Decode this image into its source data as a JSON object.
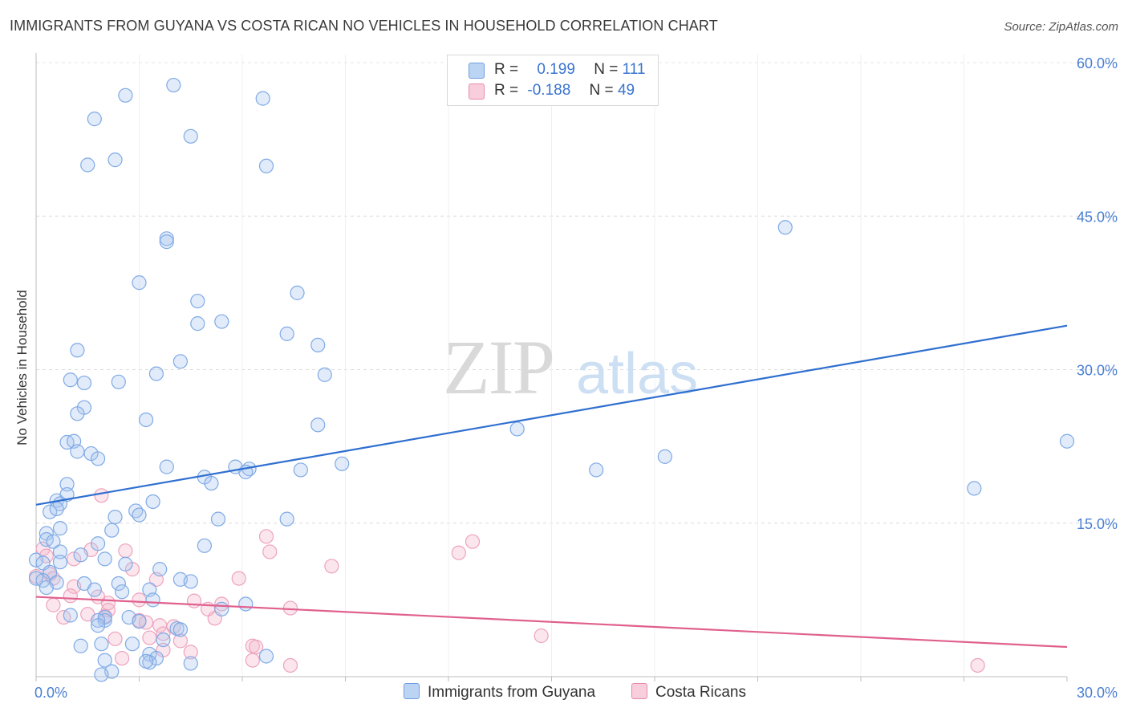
{
  "header": {
    "title": "IMMIGRANTS FROM GUYANA VS COSTA RICAN NO VEHICLES IN HOUSEHOLD CORRELATION CHART",
    "source": "Source: ZipAtlas.com"
  },
  "watermark": {
    "part1": "ZIP",
    "part2": "atlas"
  },
  "legend": {
    "rows": [
      {
        "r_label": "R =",
        "r_value": "0.199",
        "n_label": "N =",
        "n_value": "111"
      },
      {
        "r_label": "R =",
        "r_value": "-0.188",
        "n_label": "N =",
        "n_value": "49"
      }
    ]
  },
  "chart_data": {
    "type": "scatter",
    "title": "IMMIGRANTS FROM GUYANA VS COSTA RICAN NO VEHICLES IN HOUSEHOLD CORRELATION CHART",
    "xlabel": "",
    "ylabel": "No Vehicles in Household",
    "xlim": [
      0,
      30
    ],
    "ylim": [
      0,
      60
    ],
    "x_tick_labels": [
      "0.0%",
      "30.0%"
    ],
    "y_tick_labels": [
      "15.0%",
      "30.0%",
      "45.0%",
      "60.0%"
    ],
    "y_ticks": [
      15,
      30,
      45,
      60
    ],
    "grid": true,
    "legend_position": "top-center",
    "colors": {
      "guyana": "#a9c6ee",
      "guyana_line": "#2f6fd0",
      "costa": "#f4b8cc",
      "costa_line": "#e0608e"
    },
    "series": [
      {
        "name": "Immigrants from Guyana",
        "trend": {
          "x": [
            0,
            30
          ],
          "y": [
            16.8,
            34.3
          ]
        },
        "points": [
          [
            2.6,
            56.8
          ],
          [
            4.0,
            57.8
          ],
          [
            1.7,
            54.5
          ],
          [
            6.6,
            56.5
          ],
          [
            4.5,
            52.8
          ],
          [
            1.5,
            50
          ],
          [
            2.3,
            50.5
          ],
          [
            6.7,
            49.9
          ],
          [
            21.8,
            43.9
          ],
          [
            3.8,
            42.8
          ],
          [
            3.8,
            42.5
          ],
          [
            3.0,
            38.5
          ],
          [
            7.6,
            37.5
          ],
          [
            4.7,
            36.7
          ],
          [
            4.7,
            34.5
          ],
          [
            5.4,
            34.7
          ],
          [
            7.3,
            33.5
          ],
          [
            8.2,
            32.4
          ],
          [
            1.2,
            31.9
          ],
          [
            4.2,
            30.8
          ],
          [
            3.5,
            29.6
          ],
          [
            8.4,
            29.5
          ],
          [
            1.0,
            29.0
          ],
          [
            1.4,
            28.7
          ],
          [
            2.4,
            28.8
          ],
          [
            1.4,
            26.3
          ],
          [
            1.2,
            25.7
          ],
          [
            3.2,
            25.1
          ],
          [
            8.2,
            24.6
          ],
          [
            14.0,
            24.2
          ],
          [
            30.0,
            23.0
          ],
          [
            0.9,
            22.9
          ],
          [
            1.1,
            23.0
          ],
          [
            1.2,
            22.0
          ],
          [
            1.6,
            21.8
          ],
          [
            1.8,
            21.3
          ],
          [
            18.3,
            21.5
          ],
          [
            3.8,
            20.5
          ],
          [
            5.8,
            20.5
          ],
          [
            6.2,
            20.3
          ],
          [
            6.1,
            20.0
          ],
          [
            7.7,
            20.2
          ],
          [
            8.9,
            20.8
          ],
          [
            16.3,
            20.2
          ],
          [
            4.9,
            19.5
          ],
          [
            5.1,
            18.9
          ],
          [
            27.3,
            18.4
          ],
          [
            0.9,
            18.8
          ],
          [
            0.9,
            17.8
          ],
          [
            0.6,
            17.2
          ],
          [
            0.7,
            16.9
          ],
          [
            3.4,
            17.1
          ],
          [
            0.4,
            16.1
          ],
          [
            0.6,
            16.4
          ],
          [
            2.9,
            16.2
          ],
          [
            3.0,
            15.8
          ],
          [
            2.3,
            15.6
          ],
          [
            5.3,
            15.4
          ],
          [
            7.3,
            15.4
          ],
          [
            0.7,
            14.5
          ],
          [
            2.2,
            14.3
          ],
          [
            0.3,
            14.0
          ],
          [
            0.3,
            13.4
          ],
          [
            0.5,
            13.2
          ],
          [
            1.8,
            13.0
          ],
          [
            4.9,
            12.8
          ],
          [
            0.7,
            12.2
          ],
          [
            1.3,
            11.9
          ],
          [
            0,
            11.4
          ],
          [
            0.2,
            11.1
          ],
          [
            0.7,
            11.2
          ],
          [
            2.0,
            11.5
          ],
          [
            2.6,
            11.0
          ],
          [
            3.6,
            10.5
          ],
          [
            0.4,
            10.2
          ],
          [
            0,
            9.6
          ],
          [
            0.2,
            9.4
          ],
          [
            0.6,
            9.2
          ],
          [
            1.4,
            9.1
          ],
          [
            2.4,
            9.1
          ],
          [
            4.2,
            9.5
          ],
          [
            4.5,
            9.3
          ],
          [
            0.3,
            8.7
          ],
          [
            1.7,
            8.5
          ],
          [
            2.5,
            8.3
          ],
          [
            3.3,
            8.5
          ],
          [
            3.4,
            7.5
          ],
          [
            6.1,
            7.1
          ],
          [
            5.4,
            6.6
          ],
          [
            1.0,
            6.0
          ],
          [
            2.0,
            5.8
          ],
          [
            2.0,
            5.5
          ],
          [
            2.7,
            5.8
          ],
          [
            1.8,
            5.5
          ],
          [
            3.0,
            5.4
          ],
          [
            1.8,
            5.0
          ],
          [
            4.1,
            4.7
          ],
          [
            4.2,
            4.6
          ],
          [
            3.7,
            3.6
          ],
          [
            1.3,
            3.0
          ],
          [
            1.9,
            3.2
          ],
          [
            2.8,
            3.2
          ],
          [
            3.3,
            2.2
          ],
          [
            3.5,
            1.8
          ],
          [
            3.3,
            1.4
          ],
          [
            6.7,
            2.0
          ],
          [
            2.0,
            1.6
          ],
          [
            4.5,
            1.3
          ],
          [
            3.2,
            1.5
          ],
          [
            2.2,
            0.5
          ],
          [
            1.9,
            0.2
          ]
        ]
      },
      {
        "name": "Costa Ricans",
        "trend": {
          "x": [
            0,
            30
          ],
          "y": [
            7.8,
            2.9
          ]
        },
        "points": [
          [
            1.9,
            17.7
          ],
          [
            0.2,
            12.5
          ],
          [
            0.3,
            11.8
          ],
          [
            1.6,
            12.4
          ],
          [
            2.6,
            12.3
          ],
          [
            6.7,
            13.7
          ],
          [
            6.8,
            12.2
          ],
          [
            12.3,
            12.1
          ],
          [
            12.7,
            13.2
          ],
          [
            0.4,
            10.0
          ],
          [
            1.1,
            11.5
          ],
          [
            8.6,
            10.8
          ],
          [
            2.8,
            10.5
          ],
          [
            0,
            9.8
          ],
          [
            0.5,
            9.6
          ],
          [
            3.5,
            9.5
          ],
          [
            5.9,
            9.6
          ],
          [
            1.1,
            8.8
          ],
          [
            1.0,
            7.9
          ],
          [
            1.8,
            7.8
          ],
          [
            2.1,
            7.2
          ],
          [
            3.0,
            7.5
          ],
          [
            4.6,
            7.4
          ],
          [
            5.4,
            7.1
          ],
          [
            0.5,
            7.0
          ],
          [
            2.1,
            6.5
          ],
          [
            5.0,
            6.6
          ],
          [
            7.4,
            6.7
          ],
          [
            0.8,
            5.8
          ],
          [
            1.5,
            6.1
          ],
          [
            2.0,
            5.9
          ],
          [
            5.2,
            5.7
          ],
          [
            3.0,
            5.5
          ],
          [
            3.2,
            5.3
          ],
          [
            3.6,
            5.0
          ],
          [
            4.0,
            4.9
          ],
          [
            3.7,
            4.2
          ],
          [
            3.3,
            3.8
          ],
          [
            14.7,
            4.0
          ],
          [
            4.2,
            3.5
          ],
          [
            2.3,
            3.7
          ],
          [
            6.3,
            3.0
          ],
          [
            6.4,
            2.9
          ],
          [
            3.7,
            2.6
          ],
          [
            4.5,
            2.4
          ],
          [
            2.5,
            1.8
          ],
          [
            6.3,
            1.6
          ],
          [
            7.4,
            1.1
          ],
          [
            27.4,
            1.1
          ]
        ]
      }
    ]
  },
  "bottom_legend": {
    "items": [
      {
        "label": "Immigrants from Guyana"
      },
      {
        "label": "Costa Ricans"
      }
    ]
  }
}
